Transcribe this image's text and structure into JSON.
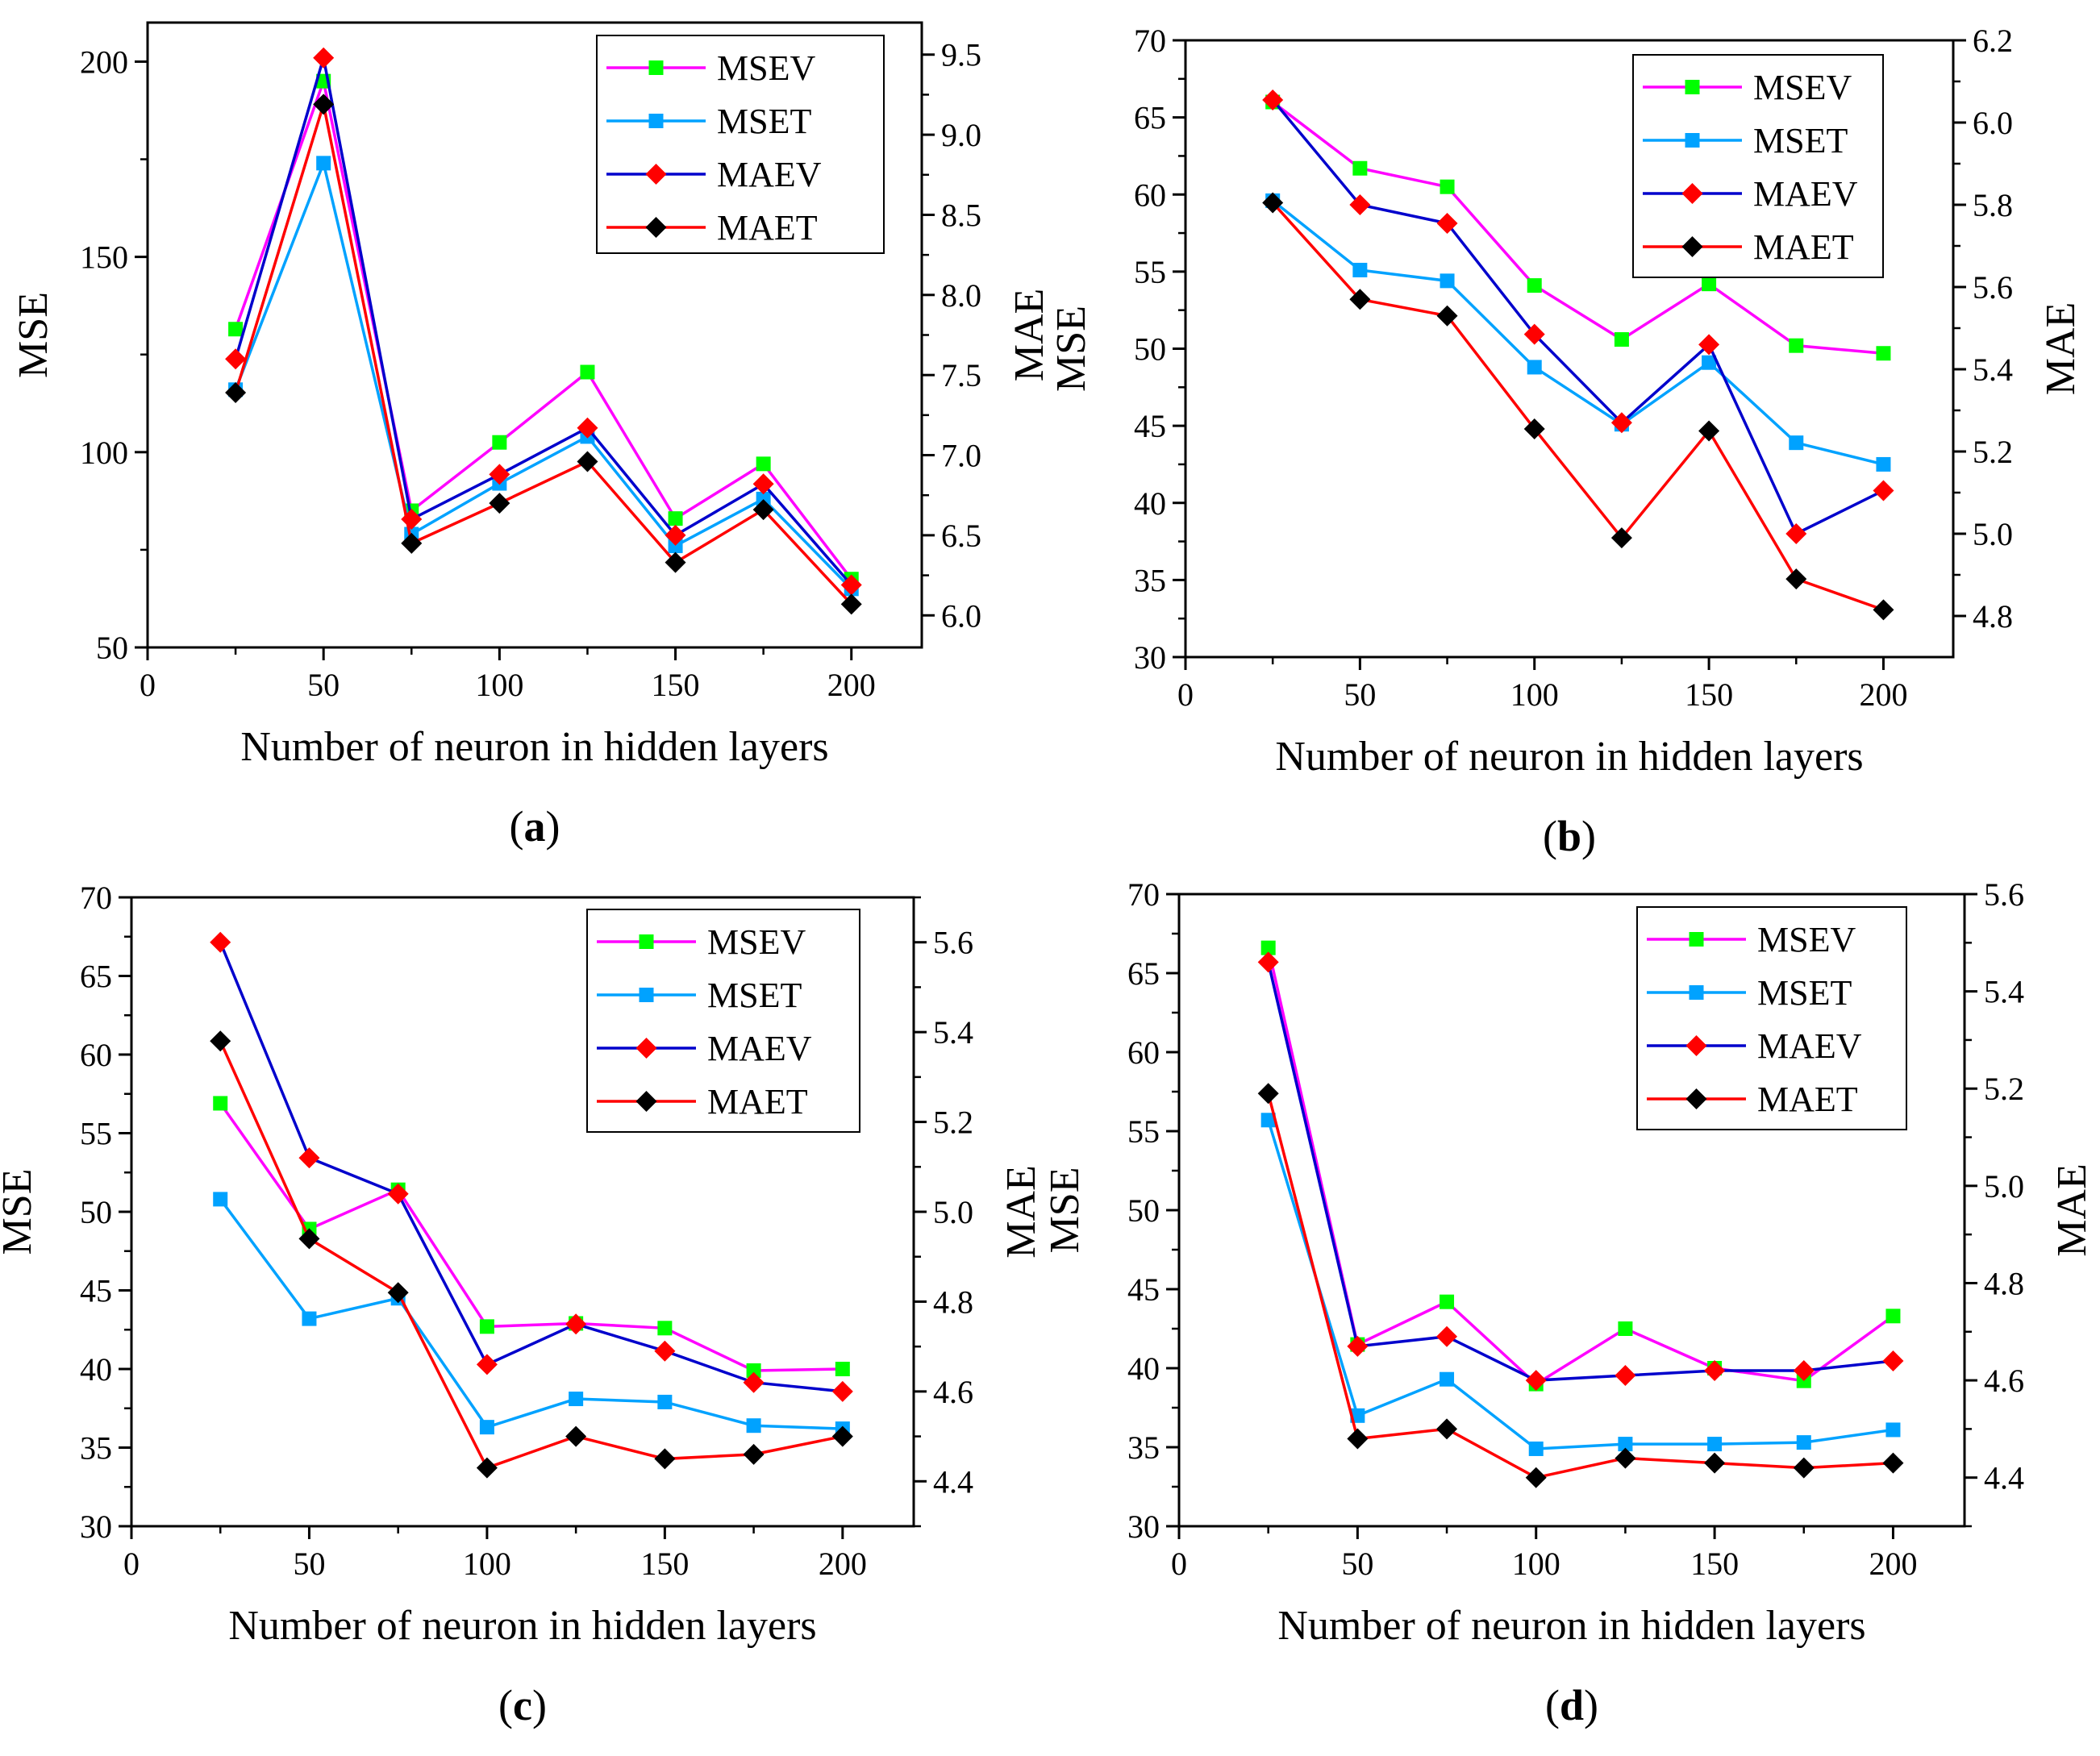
{
  "figure": {
    "legend_entries": [
      {
        "name": "MSEV",
        "color": "#ff00ff",
        "marker": "square",
        "marker_color": "#00ff00"
      },
      {
        "name": "MSET",
        "color": "#00a2ff",
        "marker": "square",
        "marker_color": "#00a2ff"
      },
      {
        "name": "MAEV",
        "color": "#0000cc",
        "marker": "diamond",
        "marker_color": "#ff0000"
      },
      {
        "name": "MAET",
        "color": "#ff0000",
        "marker": "diamond",
        "marker_color": "#000000"
      }
    ]
  },
  "chart_data": [
    {
      "type": "line",
      "panel": "a",
      "caption_open": "(",
      "caption_letter": "a",
      "caption_close": ")",
      "xlabel": "Number of neuron in hidden layers",
      "ylabel": "MSE",
      "y2label": "MAE",
      "xlim": [
        0,
        220
      ],
      "ylim": [
        50,
        210
      ],
      "y2lim": [
        5.8,
        9.7
      ],
      "xticks": [
        0,
        50,
        100,
        150,
        200
      ],
      "yticks": [
        50,
        100,
        150,
        200
      ],
      "y2ticks": [
        "6.0",
        "6.5",
        "7.0",
        "7.5",
        "8.0",
        "8.5",
        "9.0",
        "9.5"
      ],
      "legend_position": "top-right",
      "x": [
        25,
        50,
        75,
        100,
        125,
        150,
        175,
        200
      ],
      "series": [
        {
          "name": "MSEV",
          "axis": "left",
          "values": [
            131.5,
            195,
            85,
            102.5,
            120.5,
            83,
            97,
            67.5
          ]
        },
        {
          "name": "MSET",
          "axis": "left",
          "values": [
            116,
            174,
            79,
            92,
            104,
            76,
            88,
            65
          ]
        },
        {
          "name": "MAEV",
          "axis": "right",
          "values": [
            7.6,
            9.48,
            6.6,
            6.88,
            7.17,
            6.5,
            6.82,
            6.19
          ]
        },
        {
          "name": "MAET",
          "axis": "right",
          "values": [
            7.39,
            9.19,
            6.45,
            6.7,
            6.96,
            6.33,
            6.66,
            6.07
          ]
        }
      ]
    },
    {
      "type": "line",
      "panel": "b",
      "caption_open": "(",
      "caption_letter": "b",
      "caption_close": ")",
      "xlabel": "Number of neuron in hidden layers",
      "ylabel": "MSE",
      "y2label": "MAE",
      "xlim": [
        0,
        220
      ],
      "ylim": [
        30,
        70
      ],
      "y2lim": [
        4.7,
        6.2
      ],
      "xticks": [
        0,
        50,
        100,
        150,
        200
      ],
      "yticks": [
        30,
        35,
        40,
        45,
        50,
        55,
        60,
        65,
        70
      ],
      "y2ticks": [
        "4.8",
        "5.0",
        "5.2",
        "5.4",
        "5.6",
        "5.8",
        "6.0",
        "6.2"
      ],
      "legend_position": "top-right",
      "x": [
        25,
        50,
        75,
        100,
        125,
        150,
        175,
        200
      ],
      "series": [
        {
          "name": "MSEV",
          "axis": "left",
          "values": [
            66,
            61.7,
            60.5,
            54.1,
            50.6,
            54.2,
            50.2,
            49.7
          ]
        },
        {
          "name": "MSET",
          "axis": "left",
          "values": [
            59.6,
            55.1,
            54.4,
            48.8,
            45.1,
            49.1,
            43.9,
            42.5
          ]
        },
        {
          "name": "MAEV",
          "axis": "right",
          "values": [
            6.055,
            5.8,
            5.755,
            5.485,
            5.27,
            5.46,
            5.0,
            5.105
          ]
        },
        {
          "name": "MAET",
          "axis": "right",
          "values": [
            5.805,
            5.57,
            5.53,
            5.255,
            4.99,
            5.25,
            4.89,
            4.815
          ]
        }
      ]
    },
    {
      "type": "line",
      "panel": "c",
      "caption_open": "(",
      "caption_letter": "c",
      "caption_close": ")",
      "xlabel": "Number of neuron in hidden layers",
      "ylabel": "MSE",
      "y2label": "MAE",
      "xlim": [
        0,
        220
      ],
      "ylim": [
        30,
        70
      ],
      "y2lim": [
        4.3,
        5.7
      ],
      "xticks": [
        0,
        50,
        100,
        150,
        200
      ],
      "yticks": [
        30,
        35,
        40,
        45,
        50,
        55,
        60,
        65,
        70
      ],
      "y2ticks": [
        "4.4",
        "4.6",
        "4.8",
        "5.0",
        "5.2",
        "5.4",
        "5.6"
      ],
      "legend_position": "top-right",
      "x": [
        25,
        50,
        75,
        100,
        125,
        150,
        175,
        200
      ],
      "series": [
        {
          "name": "MSEV",
          "axis": "left",
          "values": [
            56.9,
            48.9,
            51.4,
            42.7,
            42.9,
            42.6,
            39.9,
            40.0
          ]
        },
        {
          "name": "MSET",
          "axis": "left",
          "values": [
            50.8,
            43.2,
            44.5,
            36.3,
            38.1,
            37.9,
            36.4,
            36.2
          ]
        },
        {
          "name": "MAEV",
          "axis": "right",
          "values": [
            5.6,
            5.12,
            5.04,
            4.66,
            4.75,
            4.69,
            4.62,
            4.6
          ]
        },
        {
          "name": "MAET",
          "axis": "right",
          "values": [
            5.38,
            4.94,
            4.82,
            4.43,
            4.5,
            4.45,
            4.46,
            4.5
          ]
        }
      ]
    },
    {
      "type": "line",
      "panel": "d",
      "caption_open": "(",
      "caption_letter": "d",
      "caption_close": ")",
      "xlabel": "Number of neuron in hidden layers",
      "ylabel": "MSE",
      "y2label": "MAE",
      "xlim": [
        0,
        220
      ],
      "ylim": [
        30,
        70
      ],
      "y2lim": [
        4.3,
        5.6
      ],
      "xticks": [
        0,
        50,
        100,
        150,
        200
      ],
      "yticks": [
        30,
        35,
        40,
        45,
        50,
        55,
        60,
        65,
        70
      ],
      "y2ticks": [
        "4.4",
        "4.6",
        "4.8",
        "5.0",
        "5.2",
        "5.4",
        "5.6"
      ],
      "legend_position": "top-right",
      "x": [
        25,
        50,
        75,
        100,
        125,
        150,
        175,
        200
      ],
      "series": [
        {
          "name": "MSEV",
          "axis": "left",
          "values": [
            66.6,
            41.5,
            44.2,
            39.0,
            42.5,
            40.0,
            39.2,
            43.3
          ]
        },
        {
          "name": "MSET",
          "axis": "left",
          "values": [
            55.7,
            37.0,
            39.3,
            34.9,
            35.2,
            35.2,
            35.3,
            36.1
          ]
        },
        {
          "name": "MAEV",
          "axis": "right",
          "values": [
            5.46,
            4.67,
            4.69,
            4.6,
            4.61,
            4.62,
            4.62,
            4.64
          ]
        },
        {
          "name": "MAET",
          "axis": "right",
          "values": [
            5.19,
            4.48,
            4.5,
            4.4,
            4.44,
            4.43,
            4.42,
            4.43
          ]
        }
      ]
    }
  ]
}
